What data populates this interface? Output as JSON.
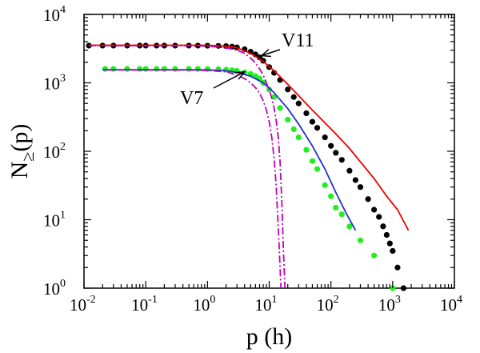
{
  "chart_data": {
    "type": "scatter",
    "xscale": "log",
    "yscale": "log",
    "xlim": [
      0.01,
      10000
    ],
    "ylim": [
      1,
      10000
    ],
    "xlabel": {
      "main": "p (h)"
    },
    "ylabel": {
      "main": "N",
      "subscript": "≥",
      "suffix": "(p)"
    },
    "xticks": [
      {
        "base": "10",
        "exp": "-2"
      },
      {
        "base": "10",
        "exp": "-1"
      },
      {
        "base": "10",
        "exp": "0"
      },
      {
        "base": "10",
        "exp": "1"
      },
      {
        "base": "10",
        "exp": "2"
      },
      {
        "base": "10",
        "exp": "3"
      },
      {
        "base": "10",
        "exp": "4"
      }
    ],
    "yticks": [
      {
        "base": "10",
        "exp": "0"
      },
      {
        "base": "10",
        "exp": "1"
      },
      {
        "base": "10",
        "exp": "2"
      },
      {
        "base": "10",
        "exp": "3"
      },
      {
        "base": "10",
        "exp": "4"
      }
    ],
    "series": [
      {
        "name": "V11 data",
        "kind": "points",
        "color": "#000000",
        "x": [
          0.012,
          0.02,
          0.03,
          0.05,
          0.08,
          0.1,
          0.15,
          0.2,
          0.3,
          0.5,
          0.7,
          1.0,
          1.5,
          2.0,
          2.5,
          3.0,
          4.0,
          5.0,
          6.0,
          7.0,
          8.0,
          10,
          12,
          15,
          20,
          25,
          30,
          40,
          50,
          60,
          80,
          100,
          120,
          150,
          200,
          250,
          300,
          400,
          500,
          600,
          700,
          800,
          900,
          1000,
          1200,
          1500
        ],
        "y": [
          3500,
          3500,
          3500,
          3500,
          3500,
          3500,
          3500,
          3500,
          3500,
          3500,
          3500,
          3490,
          3470,
          3440,
          3380,
          3300,
          3100,
          2850,
          2600,
          2350,
          2100,
          1700,
          1400,
          1100,
          800,
          620,
          500,
          360,
          270,
          220,
          160,
          120,
          95,
          75,
          52,
          38,
          30,
          20,
          14,
          11,
          8,
          6,
          4.5,
          3.5,
          2,
          1
        ]
      },
      {
        "name": "V7 data",
        "kind": "points",
        "color": "#22ee22",
        "x": [
          0.022,
          0.03,
          0.05,
          0.08,
          0.1,
          0.15,
          0.2,
          0.3,
          0.5,
          0.7,
          1.0,
          1.5,
          2.0,
          2.5,
          3.0,
          4.0,
          5.0,
          6.0,
          7.0,
          8.0,
          10,
          12,
          15,
          20,
          25,
          30,
          40,
          50,
          60,
          80,
          100,
          120,
          150,
          200,
          300,
          500,
          1000
        ],
        "y": [
          1600,
          1600,
          1600,
          1600,
          1600,
          1600,
          1600,
          1600,
          1600,
          1600,
          1590,
          1580,
          1560,
          1530,
          1500,
          1420,
          1350,
          1250,
          1150,
          1000,
          800,
          620,
          430,
          290,
          210,
          160,
          105,
          72,
          55,
          32,
          22,
          15,
          12,
          8,
          5,
          3,
          1
        ]
      },
      {
        "name": "V11 fit",
        "kind": "line",
        "color": "#ee0000",
        "x": [
          0.012,
          0.1,
          0.5,
          1.0,
          2.0,
          3.0,
          5.0,
          8.0,
          12,
          20,
          30,
          50,
          80,
          120,
          200,
          300,
          500,
          800,
          1200,
          1800
        ],
        "y": [
          3550,
          3550,
          3550,
          3540,
          3450,
          3250,
          2700,
          2050,
          1500,
          950,
          650,
          400,
          260,
          180,
          110,
          70,
          40,
          22,
          14,
          7
        ]
      },
      {
        "name": "V7 fit",
        "kind": "line",
        "color": "#2233cc",
        "x": [
          0.02,
          0.1,
          0.5,
          1.0,
          2.0,
          3.0,
          5.0,
          8.0,
          12,
          20,
          30,
          50,
          80,
          120,
          180,
          250
        ],
        "y": [
          1550,
          1550,
          1550,
          1545,
          1500,
          1420,
          1250,
          1000,
          720,
          420,
          250,
          120,
          55,
          25,
          12,
          7
        ]
      },
      {
        "name": "V11 exponential",
        "kind": "dashed",
        "color": "#c000c0",
        "x": [
          0.012,
          0.5,
          1.0,
          2.0,
          3.0,
          4.0,
          5.0,
          6.0,
          7.0,
          8.0,
          10,
          11,
          12,
          13,
          14,
          15,
          16,
          17,
          18
        ],
        "y": [
          3500,
          3480,
          3440,
          3250,
          3000,
          2700,
          2300,
          1950,
          1600,
          1300,
          800,
          600,
          430,
          280,
          160,
          70,
          18,
          3.5,
          1
        ]
      },
      {
        "name": "V7 exponential",
        "kind": "dashed",
        "color": "#c000c0",
        "x": [
          0.022,
          0.5,
          1.0,
          2.0,
          3.0,
          4.0,
          5.0,
          6.0,
          7.0,
          8.0,
          9.0,
          10,
          11,
          12,
          13,
          14,
          15,
          15.5
        ],
        "y": [
          1550,
          1540,
          1520,
          1450,
          1300,
          1150,
          1000,
          850,
          700,
          550,
          400,
          270,
          160,
          80,
          30,
          8,
          2,
          1
        ]
      }
    ],
    "annotations": [
      {
        "text": "V11",
        "arrow_to": [
          7.5,
          2500
        ]
      },
      {
        "text": "V7",
        "arrow_to": [
          4.0,
          1450
        ]
      }
    ]
  }
}
